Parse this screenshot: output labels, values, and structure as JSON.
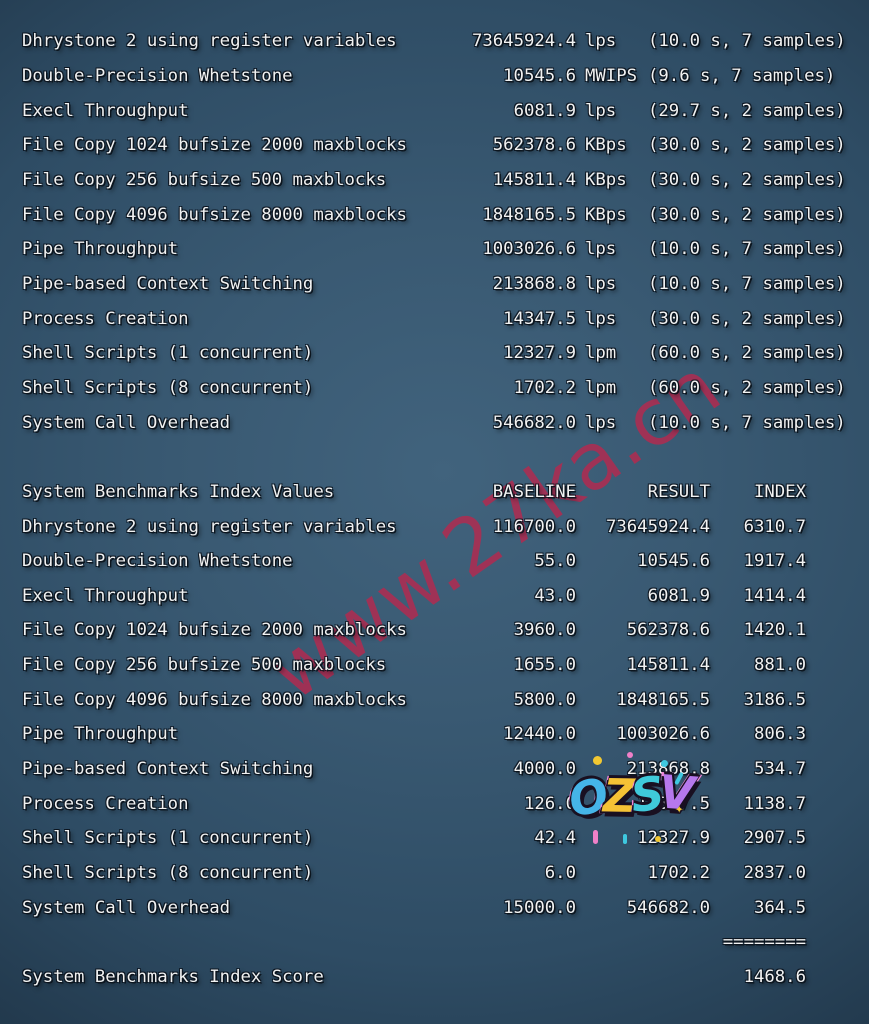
{
  "theme": {
    "bg_center": "#41637d",
    "bg_edge": "#15222e",
    "text_color": "#f1f2f2",
    "watermark_color": "#b8284e"
  },
  "watermark": {
    "text": "www.27ka.cn",
    "color": "#b8284e"
  },
  "sticker": {
    "text": "OZSV",
    "outline_color": "#ef87d6",
    "letters": [
      {
        "char": "O",
        "color": "#45b4e8"
      },
      {
        "char": "Z",
        "color": "#f5c235"
      },
      {
        "char": "S",
        "color": "#3fc9da"
      },
      {
        "char": "V",
        "color": "#b678ec"
      }
    ]
  },
  "results": {
    "rows": [
      {
        "name": "Dhrystone 2 using register variables",
        "value": "73645924.4",
        "unit": "lps",
        "time": "(10.0 s, 7 samples)"
      },
      {
        "name": "Double-Precision Whetstone",
        "value": "10545.6",
        "unit": "MWIPS",
        "time": "(9.6 s, 7 samples)"
      },
      {
        "name": "Execl Throughput",
        "value": "6081.9",
        "unit": "lps",
        "time": "(29.7 s, 2 samples)"
      },
      {
        "name": "File Copy 1024 bufsize 2000 maxblocks",
        "value": "562378.6",
        "unit": "KBps",
        "time": "(30.0 s, 2 samples)"
      },
      {
        "name": "File Copy 256 bufsize 500 maxblocks",
        "value": "145811.4",
        "unit": "KBps",
        "time": "(30.0 s, 2 samples)"
      },
      {
        "name": "File Copy 4096 bufsize 8000 maxblocks",
        "value": "1848165.5",
        "unit": "KBps",
        "time": "(30.0 s, 2 samples)"
      },
      {
        "name": "Pipe Throughput",
        "value": "1003026.6",
        "unit": "lps",
        "time": "(10.0 s, 7 samples)"
      },
      {
        "name": "Pipe-based Context Switching",
        "value": "213868.8",
        "unit": "lps",
        "time": "(10.0 s, 7 samples)"
      },
      {
        "name": "Process Creation",
        "value": "14347.5",
        "unit": "lps",
        "time": "(30.0 s, 2 samples)"
      },
      {
        "name": "Shell Scripts (1 concurrent)",
        "value": "12327.9",
        "unit": "lpm",
        "time": "(60.0 s, 2 samples)"
      },
      {
        "name": "Shell Scripts (8 concurrent)",
        "value": "1702.2",
        "unit": "lpm",
        "time": "(60.0 s, 2 samples)"
      },
      {
        "name": "System Call Overhead",
        "value": "546682.0",
        "unit": "lps",
        "time": "(10.0 s, 7 samples)"
      }
    ]
  },
  "index_table": {
    "title": "System Benchmarks Index Values",
    "headers": [
      "BASELINE",
      "RESULT",
      "INDEX"
    ],
    "rows": [
      {
        "name": "Dhrystone 2 using register variables",
        "baseline": "116700.0",
        "result": "73645924.4",
        "index": "6310.7"
      },
      {
        "name": "Double-Precision Whetstone",
        "baseline": "55.0",
        "result": "10545.6",
        "index": "1917.4"
      },
      {
        "name": "Execl Throughput",
        "baseline": "43.0",
        "result": "6081.9",
        "index": "1414.4"
      },
      {
        "name": "File Copy 1024 bufsize 2000 maxblocks",
        "baseline": "3960.0",
        "result": "562378.6",
        "index": "1420.1"
      },
      {
        "name": "File Copy 256 bufsize 500 maxblocks",
        "baseline": "1655.0",
        "result": "145811.4",
        "index": "881.0"
      },
      {
        "name": "File Copy 4096 bufsize 8000 maxblocks",
        "baseline": "5800.0",
        "result": "1848165.5",
        "index": "3186.5"
      },
      {
        "name": "Pipe Throughput",
        "baseline": "12440.0",
        "result": "1003026.6",
        "index": "806.3"
      },
      {
        "name": "Pipe-based Context Switching",
        "baseline": "4000.0",
        "result": "213868.8",
        "index": "534.7"
      },
      {
        "name": "Process Creation",
        "baseline": "126.0",
        "result": "14347.5",
        "index": "1138.7"
      },
      {
        "name": "Shell Scripts (1 concurrent)",
        "baseline": "42.4",
        "result": "12327.9",
        "index": "2907.5"
      },
      {
        "name": "Shell Scripts (8 concurrent)",
        "baseline": "6.0",
        "result": "1702.2",
        "index": "2837.0"
      },
      {
        "name": "System Call Overhead",
        "baseline": "15000.0",
        "result": "546682.0",
        "index": "364.5"
      }
    ],
    "divider": "========",
    "score_label": "System Benchmarks Index Score",
    "score": "1468.6"
  }
}
